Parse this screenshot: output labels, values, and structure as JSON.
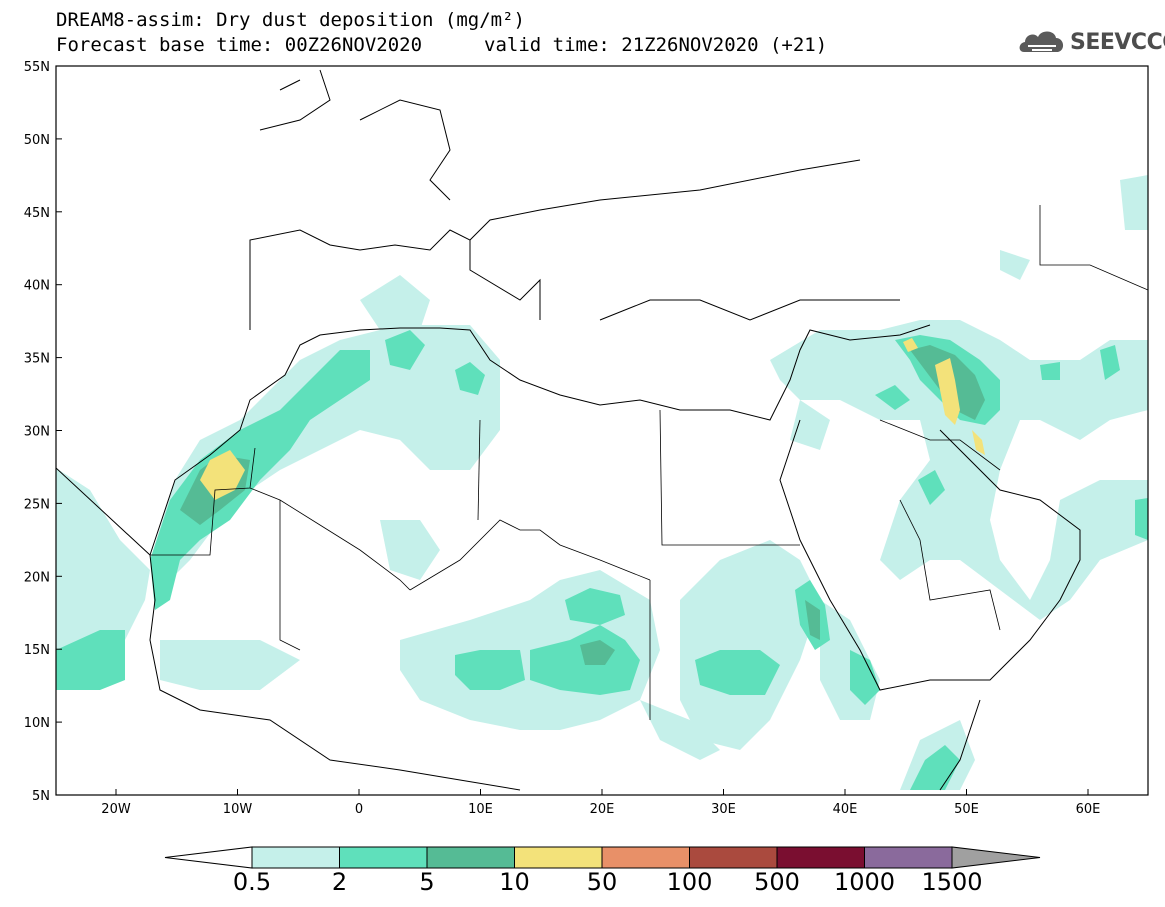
{
  "title": {
    "line1": "DREAM8-assim: Dry dust deposition (mg/m²)",
    "line2a": "Forecast base time: 00Z26NOV2020",
    "line2b": "valid time: 21Z26NOV2020 (+21)"
  },
  "logo": {
    "text": "SEEVCCC",
    "icon": "cloud-icon"
  },
  "axes": {
    "lat_labels": [
      "55N",
      "50N",
      "45N",
      "40N",
      "35N",
      "30N",
      "25N",
      "20N",
      "15N",
      "10N",
      "5N"
    ],
    "lon_labels": [
      "20W",
      "10W",
      "0",
      "10E",
      "20E",
      "30E",
      "40E",
      "50E",
      "60E"
    ]
  },
  "colorbar": {
    "levels": [
      "0.5",
      "2",
      "5",
      "10",
      "50",
      "100",
      "500",
      "1000",
      "1500"
    ],
    "colors": [
      "#ffffff",
      "#c5f0ea",
      "#5fe0bb",
      "#55bb95",
      "#f3e27a",
      "#e89068",
      "#aa4a3e",
      "#7a0e30",
      "#8a6a9c",
      "#a0a0a0"
    ]
  },
  "colors": {
    "light": "#c5f0ea",
    "mid": "#5fe0bb",
    "dark": "#55bb95",
    "yellow": "#f3e27a"
  }
}
